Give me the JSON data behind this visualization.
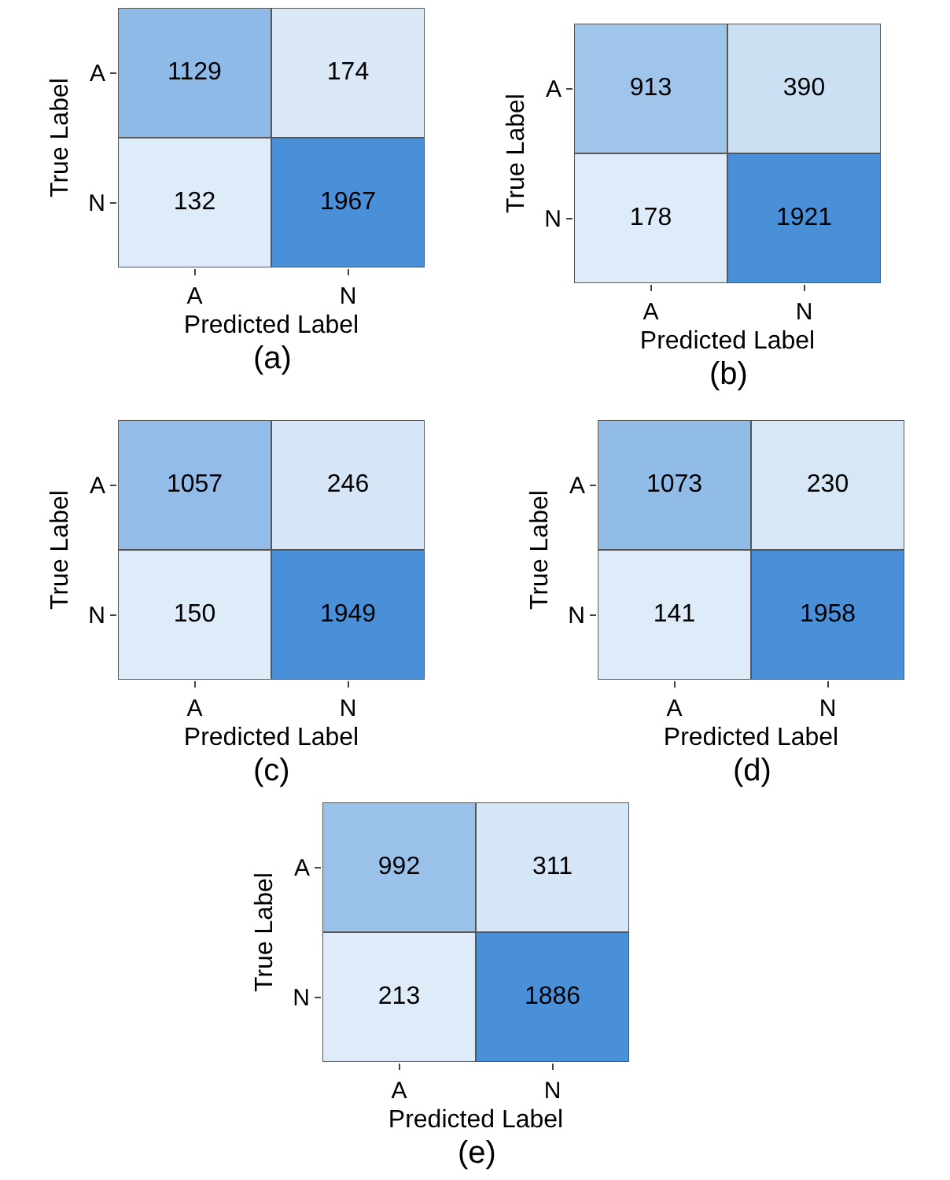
{
  "chart_data": [
    {
      "type": "heatmap",
      "categories": [
        "A",
        "N"
      ],
      "y_categories": [
        "A",
        "N"
      ],
      "cells": [
        [
          1129,
          174
        ],
        [
          132,
          1967
        ]
      ],
      "data_labels": true,
      "xlabel": "Predicted Label",
      "ylabel": "True Label",
      "annotations": [
        "(a)"
      ]
    },
    {
      "type": "heatmap",
      "categories": [
        "A",
        "N"
      ],
      "y_categories": [
        "A",
        "N"
      ],
      "cells": [
        [
          913,
          390
        ],
        [
          178,
          1921
        ]
      ],
      "data_labels": true,
      "xlabel": "Predicted Label",
      "ylabel": "True Label",
      "annotations": [
        "(b)"
      ]
    },
    {
      "type": "heatmap",
      "categories": [
        "A",
        "N"
      ],
      "y_categories": [
        "A",
        "N"
      ],
      "cells": [
        [
          1057,
          246
        ],
        [
          150,
          1949
        ]
      ],
      "data_labels": true,
      "xlabel": "Predicted Label",
      "ylabel": "True Label",
      "annotations": [
        "(c)"
      ]
    },
    {
      "type": "heatmap",
      "categories": [
        "A",
        "N"
      ],
      "y_categories": [
        "A",
        "N"
      ],
      "cells": [
        [
          1073,
          230
        ],
        [
          141,
          1958
        ]
      ],
      "data_labels": true,
      "xlabel": "Predicted Label",
      "ylabel": "True Label",
      "annotations": [
        "(d)"
      ]
    },
    {
      "type": "heatmap",
      "categories": [
        "A",
        "N"
      ],
      "y_categories": [
        "A",
        "N"
      ],
      "cells": [
        [
          992,
          311
        ],
        [
          213,
          1886
        ]
      ],
      "data_labels": true,
      "xlabel": "Predicted Label",
      "ylabel": "True Label",
      "annotations": [
        "(e)"
      ]
    }
  ]
}
